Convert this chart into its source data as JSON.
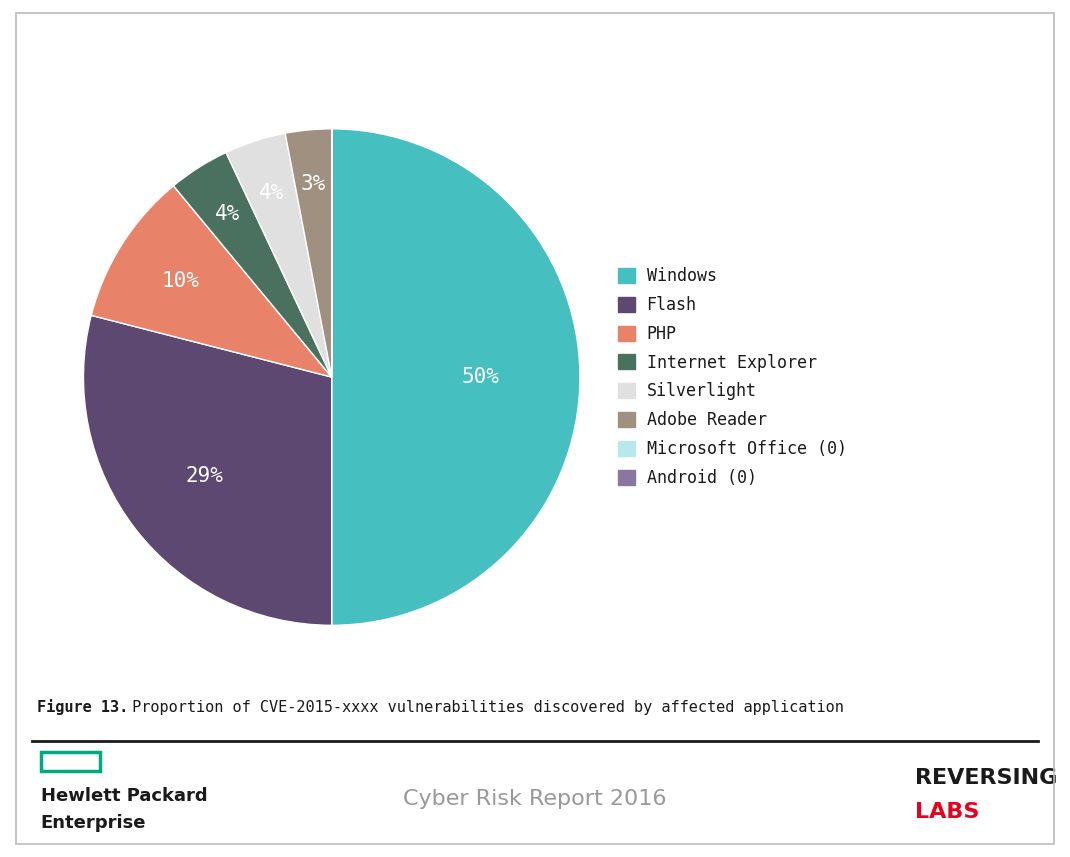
{
  "labels": [
    "Windows",
    "Flash",
    "PHP",
    "Internet Explorer",
    "Silverlight",
    "Adobe Reader",
    "Microsoft Office (0)",
    "Android (0)"
  ],
  "values": [
    50,
    29,
    10,
    4,
    4,
    3,
    0.0001,
    0.0001
  ],
  "colors": [
    "#45BFBF",
    "#5C4870",
    "#E8836A",
    "#4A7060",
    "#E0E0E0",
    "#A09080",
    "#B8E8EC",
    "#8878A0"
  ],
  "pct_labels": [
    "50%",
    "29%",
    "10%",
    "4%",
    "4%",
    "3%",
    "",
    ""
  ],
  "figure_caption_bold": "Figure 13.",
  "figure_caption_rest": " Proportion of CVE-2015-xxxx vulnerabilities discovered by affected application",
  "hpe_line1": "Hewlett Packard",
  "hpe_line2": "Enterprise",
  "center_text": "Cyber Risk Report 2016",
  "rl_line1": "REVERSING",
  "rl_line2": "LABS",
  "background_color": "#FFFFFF",
  "border_color": "#BBBBBB",
  "text_color": "#1A1A1A",
  "hpe_green": "#01A982",
  "rl_red": "#E8001C",
  "caption_fontsize": 11,
  "legend_fontsize": 12,
  "pct_fontsize": 15
}
